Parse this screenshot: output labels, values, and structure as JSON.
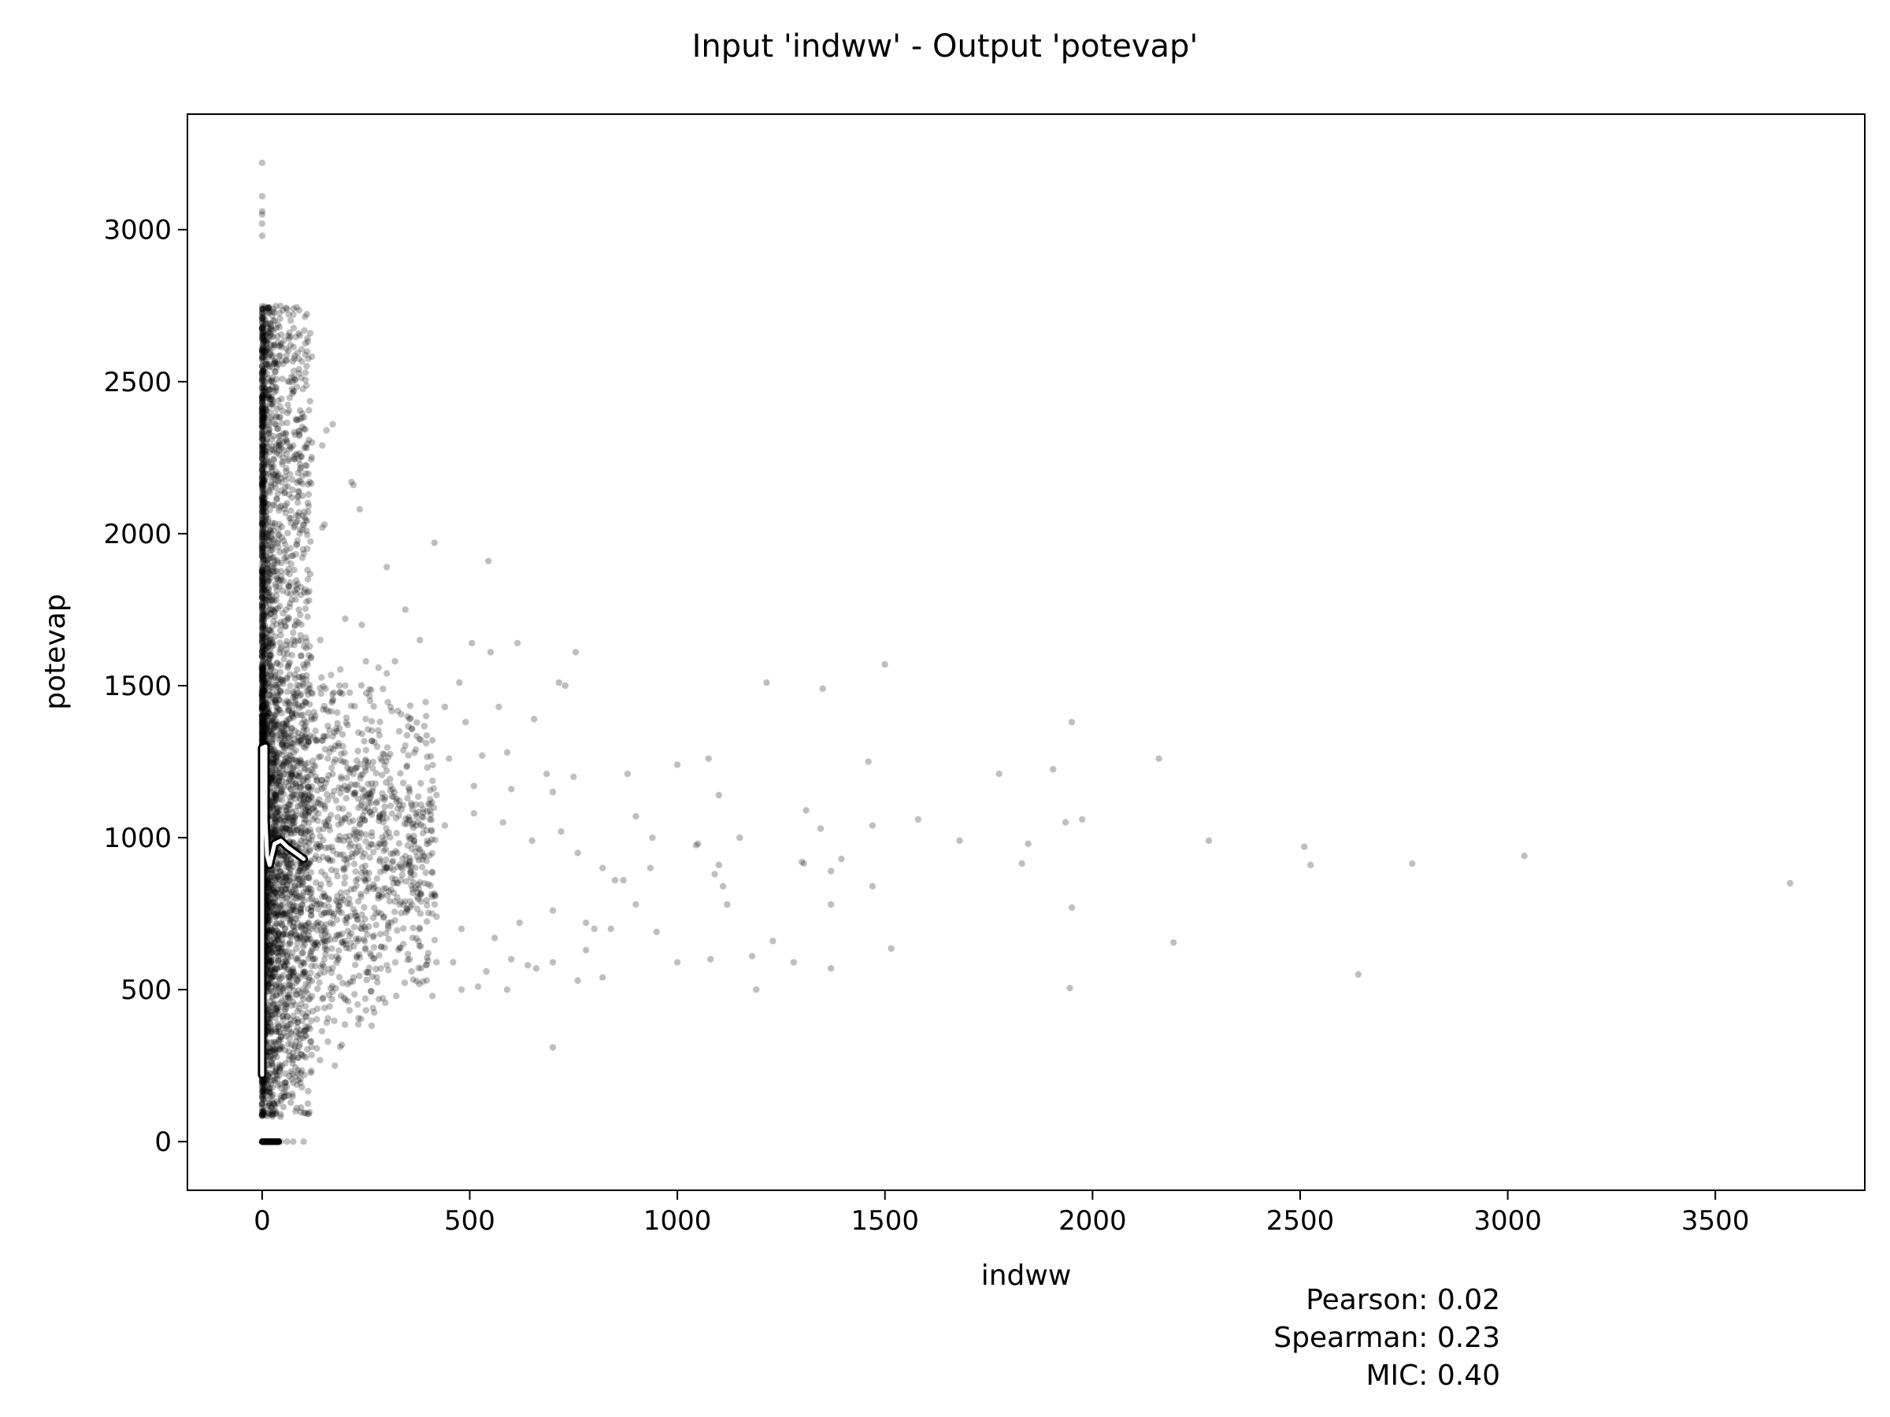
{
  "chart_data": {
    "type": "scatter",
    "title": "Input 'indww' - Output 'potevap'",
    "xlabel": "indww",
    "ylabel": "potevap",
    "xlim": [
      -180,
      3860
    ],
    "ylim": [
      -160,
      3380
    ],
    "xticks": [
      0,
      500,
      1000,
      1500,
      2000,
      2500,
      3000,
      3500
    ],
    "yticks": [
      0,
      500,
      1000,
      1500,
      2000,
      2500,
      3000
    ],
    "xtick_labels": [
      "0",
      "500",
      "1000",
      "1500",
      "2000",
      "2500",
      "3000",
      "3500"
    ],
    "ytick_labels": [
      "0",
      "500",
      "1000",
      "1500",
      "2000",
      "2500",
      "3000"
    ],
    "grid": false,
    "point_color": "#000000",
    "point_alpha": 0.25,
    "points": [
      [
        0,
        3220
      ],
      [
        0,
        3110
      ],
      [
        0,
        3060
      ],
      [
        0,
        3050
      ],
      [
        0,
        3020
      ],
      [
        0,
        2980
      ],
      [
        30,
        2700
      ],
      [
        35,
        2410
      ],
      [
        40,
        2320
      ],
      [
        60,
        2300
      ],
      [
        170,
        2360
      ],
      [
        155,
        2340
      ],
      [
        145,
        2290
      ],
      [
        120,
        2300
      ],
      [
        215,
        2170
      ],
      [
        220,
        2160
      ],
      [
        235,
        2080
      ],
      [
        85,
        2120
      ],
      [
        150,
        2030
      ],
      [
        145,
        2020
      ],
      [
        415,
        1970
      ],
      [
        545,
        1910
      ],
      [
        300,
        1890
      ],
      [
        200,
        1720
      ],
      [
        240,
        1700
      ],
      [
        345,
        1750
      ],
      [
        380,
        1650
      ],
      [
        505,
        1640
      ],
      [
        615,
        1640
      ],
      [
        550,
        1610
      ],
      [
        755,
        1610
      ],
      [
        715,
        1510
      ],
      [
        730,
        1500
      ],
      [
        475,
        1510
      ],
      [
        440,
        1430
      ],
      [
        395,
        1400
      ],
      [
        355,
        1390
      ],
      [
        300,
        1540
      ],
      [
        320,
        1580
      ],
      [
        250,
        1580
      ],
      [
        200,
        1500
      ],
      [
        260,
        1450
      ],
      [
        330,
        1350
      ],
      [
        410,
        1320
      ],
      [
        490,
        1380
      ],
      [
        570,
        1430
      ],
      [
        655,
        1390
      ],
      [
        590,
        1280
      ],
      [
        530,
        1270
      ],
      [
        450,
        1260
      ],
      [
        370,
        1290
      ],
      [
        300,
        1220
      ],
      [
        220,
        1210
      ],
      [
        240,
        1160
      ],
      [
        350,
        1130
      ],
      [
        420,
        1140
      ],
      [
        510,
        1170
      ],
      [
        600,
        1160
      ],
      [
        700,
        1150
      ],
      [
        750,
        1200
      ],
      [
        685,
        1210
      ],
      [
        880,
        1210
      ],
      [
        1000,
        1240
      ],
      [
        1075,
        1260
      ],
      [
        1100,
        1140
      ],
      [
        1215,
        1510
      ],
      [
        1350,
        1490
      ],
      [
        1500,
        1570
      ],
      [
        1460,
        1250
      ],
      [
        1580,
        1060
      ],
      [
        1680,
        990
      ],
      [
        1775,
        1210
      ],
      [
        1905,
        1225
      ],
      [
        1950,
        1380
      ],
      [
        1935,
        1050
      ],
      [
        1975,
        1060
      ],
      [
        2160,
        1260
      ],
      [
        2280,
        990
      ],
      [
        2510,
        970
      ],
      [
        2525,
        910
      ],
      [
        2770,
        915
      ],
      [
        3040,
        940
      ],
      [
        3680,
        850
      ],
      [
        1310,
        1090
      ],
      [
        1345,
        1030
      ],
      [
        1395,
        930
      ],
      [
        1370,
        890
      ],
      [
        1300,
        920
      ],
      [
        1305,
        915
      ],
      [
        1150,
        1000
      ],
      [
        1100,
        910
      ],
      [
        1090,
        880
      ],
      [
        1110,
        840
      ],
      [
        1050,
        980
      ],
      [
        1045,
        975
      ],
      [
        900,
        1070
      ],
      [
        940,
        1000
      ],
      [
        935,
        900
      ],
      [
        870,
        860
      ],
      [
        820,
        900
      ],
      [
        760,
        950
      ],
      [
        720,
        1020
      ],
      [
        650,
        990
      ],
      [
        580,
        1050
      ],
      [
        510,
        1080
      ],
      [
        440,
        1040
      ],
      [
        380,
        960
      ],
      [
        300,
        900
      ],
      [
        250,
        1010
      ],
      [
        200,
        870
      ],
      [
        280,
        800
      ],
      [
        350,
        760
      ],
      [
        420,
        740
      ],
      [
        480,
        700
      ],
      [
        560,
        670
      ],
      [
        620,
        720
      ],
      [
        700,
        760
      ],
      [
        780,
        720
      ],
      [
        840,
        700
      ],
      [
        900,
        780
      ],
      [
        950,
        690
      ],
      [
        1000,
        590
      ],
      [
        1080,
        600
      ],
      [
        1120,
        780
      ],
      [
        1180,
        610
      ],
      [
        1190,
        500
      ],
      [
        1230,
        660
      ],
      [
        1280,
        590
      ],
      [
        1370,
        570
      ],
      [
        1370,
        780
      ],
      [
        1470,
        840
      ],
      [
        1515,
        635
      ],
      [
        1950,
        770
      ],
      [
        2195,
        655
      ],
      [
        2640,
        550
      ],
      [
        1945,
        505
      ],
      [
        1845,
        980
      ],
      [
        1830,
        915
      ],
      [
        1470,
        1040
      ],
      [
        850,
        860
      ],
      [
        800,
        700
      ],
      [
        780,
        630
      ],
      [
        700,
        590
      ],
      [
        640,
        580
      ],
      [
        600,
        600
      ],
      [
        540,
        560
      ],
      [
        480,
        500
      ],
      [
        420,
        590
      ],
      [
        360,
        560
      ],
      [
        300,
        580
      ],
      [
        260,
        620
      ],
      [
        220,
        540
      ],
      [
        190,
        480
      ],
      [
        270,
        425
      ],
      [
        175,
        250
      ],
      [
        700,
        310
      ],
      [
        820,
        540
      ],
      [
        760,
        530
      ],
      [
        660,
        570
      ],
      [
        590,
        500
      ],
      [
        520,
        510
      ],
      [
        460,
        590
      ],
      [
        400,
        620
      ],
      [
        340,
        650
      ],
      [
        240,
        700
      ],
      [
        200,
        660
      ],
      [
        160,
        800
      ],
      [
        130,
        940
      ],
      [
        110,
        1100
      ],
      [
        100,
        1300
      ],
      [
        90,
        1500
      ],
      [
        80,
        1700
      ],
      [
        70,
        1900
      ],
      [
        60,
        2100
      ],
      [
        50,
        2250
      ],
      [
        140,
        1650
      ],
      [
        180,
        1350
      ],
      [
        150,
        1050
      ],
      [
        120,
        700
      ],
      [
        100,
        550
      ],
      [
        80,
        450
      ],
      [
        60,
        380
      ],
      [
        40,
        330
      ],
      [
        30,
        300
      ],
      [
        20,
        280
      ],
      [
        150,
        600
      ],
      [
        130,
        1200
      ],
      [
        170,
        1450
      ],
      [
        110,
        1850
      ],
      [
        90,
        2000
      ],
      [
        45,
        0
      ],
      [
        60,
        0
      ],
      [
        75,
        0
      ],
      [
        100,
        0
      ]
    ],
    "dense_band": {
      "x_range": [
        0,
        120
      ],
      "y_range": [
        80,
        2750
      ],
      "note": "very dense cluster near indww = 0"
    },
    "curve": {
      "color": "#ffffff",
      "outline": "#000000",
      "points": [
        [
          0,
          220
        ],
        [
          0,
          900
        ],
        [
          0,
          1130
        ],
        [
          0,
          1295
        ],
        [
          8,
          1300
        ],
        [
          8,
          1060
        ],
        [
          12,
          940
        ],
        [
          18,
          910
        ],
        [
          30,
          980
        ],
        [
          45,
          990
        ],
        [
          60,
          970
        ],
        [
          75,
          955
        ],
        [
          90,
          940
        ],
        [
          100,
          930
        ]
      ]
    },
    "annotations": [
      "Pearson: 0.02",
      "Spearman: 0.23",
      "MIC: 0.40"
    ]
  }
}
